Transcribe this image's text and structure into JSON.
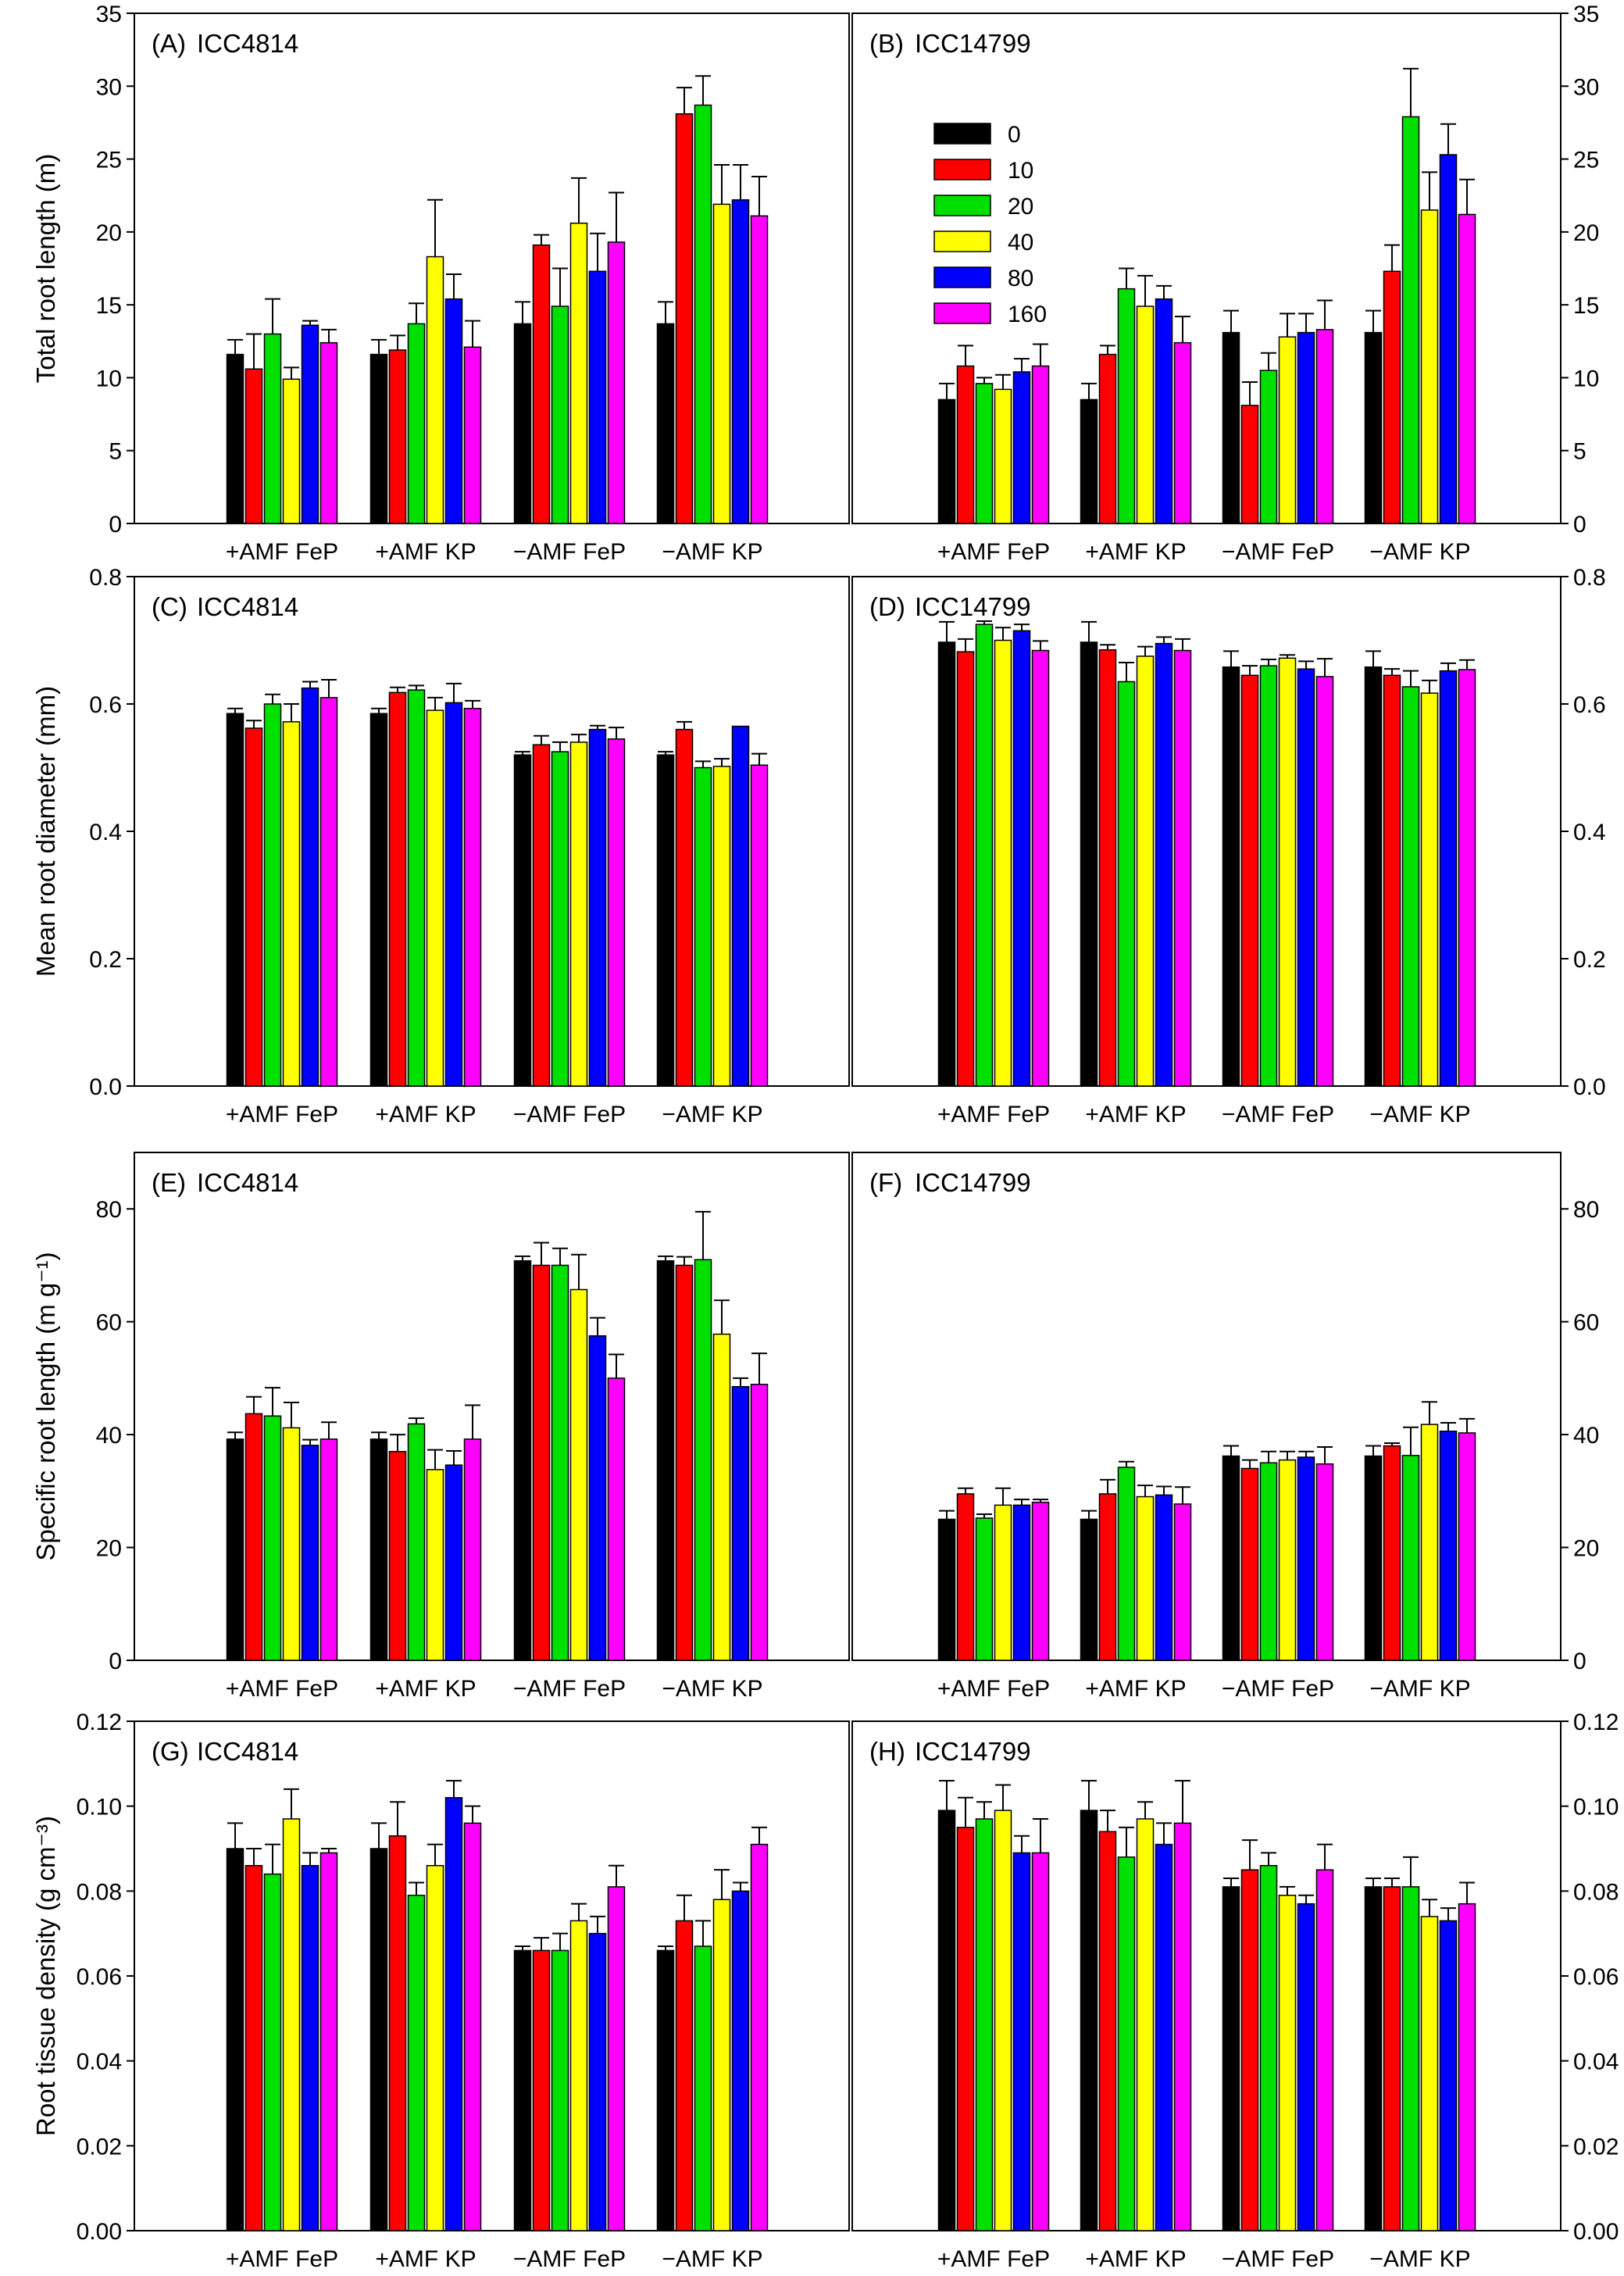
{
  "figure": {
    "y_axis_titles": [
      "Total root length (m)",
      "Mean root diameter (mm)",
      "Specific root length (m g⁻¹)",
      "Root tissue density (g cm⁻³)"
    ]
  },
  "legend": {
    "entries": [
      {
        "label": "0",
        "color": "#000000"
      },
      {
        "label": "10",
        "color": "#ff0000"
      },
      {
        "label": "20",
        "color": "#00e000"
      },
      {
        "label": "40",
        "color": "#ffff00"
      },
      {
        "label": "80",
        "color": "#0000ff"
      },
      {
        "label": "160",
        "color": "#ff00ff"
      }
    ]
  },
  "chart_data": [
    {
      "type": "bar",
      "panel_label": "(A)",
      "genotype": "ICC4814",
      "categories": [
        "+AMF FeP",
        "+AMF KP",
        "−AMF FeP",
        "−AMF KP"
      ],
      "ylabel": "Total root length (m)",
      "ylim": [
        0,
        35
      ],
      "yticks": [
        "0",
        "5",
        "10",
        "15",
        "20",
        "25",
        "30",
        "35"
      ],
      "series": [
        {
          "name": "0",
          "values": [
            11.6,
            11.6,
            13.7,
            13.7
          ],
          "errors": [
            1.0,
            1.0,
            1.5,
            1.5
          ]
        },
        {
          "name": "10",
          "values": [
            10.6,
            11.9,
            19.1,
            28.1
          ],
          "errors": [
            2.4,
            1.0,
            0.7,
            1.8
          ]
        },
        {
          "name": "20",
          "values": [
            13.0,
            13.7,
            14.9,
            28.7
          ],
          "errors": [
            2.4,
            1.4,
            2.6,
            2.0
          ]
        },
        {
          "name": "40",
          "values": [
            9.9,
            18.3,
            20.6,
            21.9
          ],
          "errors": [
            0.8,
            3.9,
            3.1,
            2.7
          ]
        },
        {
          "name": "80",
          "values": [
            13.6,
            15.4,
            17.3,
            22.2
          ],
          "errors": [
            0.3,
            1.7,
            2.6,
            2.4
          ]
        },
        {
          "name": "160",
          "values": [
            12.4,
            12.1,
            19.3,
            21.1
          ],
          "errors": [
            0.9,
            1.8,
            3.4,
            2.7
          ]
        }
      ]
    },
    {
      "type": "bar",
      "panel_label": "(B)",
      "genotype": "ICC14799",
      "categories": [
        "+AMF FeP",
        "+AMF KP",
        "−AMF FeP",
        "−AMF KP"
      ],
      "ylabel": "Total root length (m)",
      "ylim": [
        0,
        35
      ],
      "yticks": [
        "0",
        "5",
        "10",
        "15",
        "20",
        "25",
        "30",
        "35"
      ],
      "series": [
        {
          "name": "0",
          "values": [
            8.5,
            8.5,
            13.1,
            13.1
          ],
          "errors": [
            1.1,
            1.1,
            1.5,
            1.5
          ]
        },
        {
          "name": "10",
          "values": [
            10.8,
            11.6,
            8.1,
            17.3
          ],
          "errors": [
            1.4,
            0.6,
            1.6,
            1.8
          ]
        },
        {
          "name": "20",
          "values": [
            9.6,
            16.1,
            10.5,
            27.9
          ],
          "errors": [
            0.4,
            1.4,
            1.2,
            3.3
          ]
        },
        {
          "name": "40",
          "values": [
            9.2,
            14.9,
            12.8,
            21.5
          ],
          "errors": [
            1.0,
            2.1,
            1.6,
            2.6
          ]
        },
        {
          "name": "80",
          "values": [
            10.4,
            15.4,
            13.1,
            25.3
          ],
          "errors": [
            0.9,
            0.9,
            1.3,
            2.1
          ]
        },
        {
          "name": "160",
          "values": [
            10.8,
            12.4,
            13.3,
            21.2
          ],
          "errors": [
            1.5,
            1.8,
            2.0,
            2.4
          ]
        }
      ]
    },
    {
      "type": "bar",
      "panel_label": "(C)",
      "genotype": "ICC4814",
      "categories": [
        "+AMF FeP",
        "+AMF KP",
        "−AMF FeP",
        "−AMF KP"
      ],
      "ylabel": "Mean root diameter (mm)",
      "ylim": [
        0,
        0.8
      ],
      "yticks": [
        "0.0",
        "0.2",
        "0.4",
        "0.6",
        "0.8"
      ],
      "series": [
        {
          "name": "0",
          "values": [
            0.585,
            0.585,
            0.52,
            0.52
          ],
          "errors": [
            0.008,
            0.008,
            0.005,
            0.005
          ]
        },
        {
          "name": "10",
          "values": [
            0.562,
            0.618,
            0.536,
            0.56
          ],
          "errors": [
            0.012,
            0.008,
            0.014,
            0.012
          ]
        },
        {
          "name": "20",
          "values": [
            0.6,
            0.622,
            0.525,
            0.5
          ],
          "errors": [
            0.015,
            0.007,
            0.015,
            0.01
          ]
        },
        {
          "name": "40",
          "values": [
            0.572,
            0.59,
            0.54,
            0.502
          ],
          "errors": [
            0.028,
            0.02,
            0.012,
            0.012
          ]
        },
        {
          "name": "80",
          "values": [
            0.625,
            0.602,
            0.56,
            0.565
          ],
          "errors": [
            0.01,
            0.03,
            0.006,
            0.0
          ]
        },
        {
          "name": "160",
          "values": [
            0.61,
            0.593,
            0.545,
            0.504
          ],
          "errors": [
            0.028,
            0.012,
            0.018,
            0.018
          ]
        }
      ]
    },
    {
      "type": "bar",
      "panel_label": "(D)",
      "genotype": "ICC14799",
      "categories": [
        "+AMF FeP",
        "+AMF KP",
        "−AMF FeP",
        "−AMF KP"
      ],
      "ylabel": "Mean root diameter (mm)",
      "ylim": [
        0,
        0.8
      ],
      "yticks": [
        "0.0",
        "0.2",
        "0.4",
        "0.6",
        "0.8"
      ],
      "series": [
        {
          "name": "0",
          "values": [
            0.697,
            0.697,
            0.658,
            0.658
          ],
          "errors": [
            0.032,
            0.032,
            0.025,
            0.025
          ]
        },
        {
          "name": "10",
          "values": [
            0.682,
            0.685,
            0.645,
            0.645
          ],
          "errors": [
            0.02,
            0.008,
            0.015,
            0.01
          ]
        },
        {
          "name": "20",
          "values": [
            0.725,
            0.635,
            0.66,
            0.627
          ],
          "errors": [
            0.005,
            0.03,
            0.01,
            0.025
          ]
        },
        {
          "name": "40",
          "values": [
            0.7,
            0.675,
            0.672,
            0.617
          ],
          "errors": [
            0.02,
            0.015,
            0.005,
            0.02
          ]
        },
        {
          "name": "80",
          "values": [
            0.715,
            0.695,
            0.655,
            0.652
          ],
          "errors": [
            0.01,
            0.01,
            0.012,
            0.012
          ]
        },
        {
          "name": "160",
          "values": [
            0.684,
            0.684,
            0.643,
            0.654
          ],
          "errors": [
            0.015,
            0.018,
            0.028,
            0.015
          ]
        }
      ]
    },
    {
      "type": "bar",
      "panel_label": "(E)",
      "genotype": "ICC4814",
      "categories": [
        "+AMF FeP",
        "+AMF KP",
        "−AMF FeP",
        "−AMF KP"
      ],
      "ylabel": "Specific root length (m g⁻¹)",
      "ylim": [
        0,
        90
      ],
      "yticks": [
        "0",
        "20",
        "40",
        "60",
        "80"
      ],
      "series": [
        {
          "name": "0",
          "values": [
            39.2,
            39.2,
            70.8,
            70.8
          ],
          "errors": [
            1.2,
            1.2,
            0.8,
            0.8
          ]
        },
        {
          "name": "10",
          "values": [
            43.7,
            37.0,
            70.0,
            70.0
          ],
          "errors": [
            3.0,
            3.0,
            4.0,
            1.5
          ]
        },
        {
          "name": "20",
          "values": [
            43.3,
            41.9,
            70.0,
            71.0
          ],
          "errors": [
            5.0,
            1.0,
            3.0,
            8.5
          ]
        },
        {
          "name": "40",
          "values": [
            41.2,
            33.8,
            65.7,
            57.8
          ],
          "errors": [
            4.5,
            3.5,
            6.2,
            6.0
          ]
        },
        {
          "name": "80",
          "values": [
            38.1,
            34.6,
            57.5,
            48.5
          ],
          "errors": [
            1.0,
            2.5,
            3.2,
            1.5
          ]
        },
        {
          "name": "160",
          "values": [
            39.2,
            39.2,
            50.0,
            48.9
          ],
          "errors": [
            3.0,
            6.0,
            4.2,
            5.5
          ]
        }
      ]
    },
    {
      "type": "bar",
      "panel_label": "(F)",
      "genotype": "ICC14799",
      "categories": [
        "+AMF FeP",
        "+AMF KP",
        "−AMF FeP",
        "−AMF KP"
      ],
      "ylabel": "Specific root length (m g⁻¹)",
      "ylim": [
        0,
        90
      ],
      "yticks": [
        "0",
        "20",
        "40",
        "60",
        "80"
      ],
      "series": [
        {
          "name": "0",
          "values": [
            25.0,
            25.0,
            36.2,
            36.2
          ],
          "errors": [
            1.5,
            1.5,
            1.8,
            1.8
          ]
        },
        {
          "name": "10",
          "values": [
            29.5,
            29.5,
            34.0,
            38.0
          ],
          "errors": [
            1.0,
            2.5,
            1.5,
            0.5
          ]
        },
        {
          "name": "20",
          "values": [
            25.2,
            34.2,
            35.0,
            36.3
          ],
          "errors": [
            0.7,
            1.0,
            2.0,
            5.0
          ]
        },
        {
          "name": "40",
          "values": [
            27.5,
            29.0,
            35.5,
            41.8
          ],
          "errors": [
            3.0,
            2.0,
            1.5,
            4.0
          ]
        },
        {
          "name": "80",
          "values": [
            27.5,
            29.3,
            36.0,
            40.6
          ],
          "errors": [
            1.0,
            1.5,
            1.0,
            1.5
          ]
        },
        {
          "name": "160",
          "values": [
            28.0,
            27.7,
            34.8,
            40.3
          ],
          "errors": [
            0.5,
            3.0,
            3.0,
            2.5
          ]
        }
      ]
    },
    {
      "type": "bar",
      "panel_label": "(G)",
      "genotype": "ICC4814",
      "categories": [
        "+AMF FeP",
        "+AMF KP",
        "−AMF FeP",
        "−AMF KP"
      ],
      "ylabel": "Root tissue density (g cm⁻³)",
      "ylim": [
        0,
        0.12
      ],
      "yticks": [
        "0.00",
        "0.02",
        "0.04",
        "0.06",
        "0.08",
        "0.10",
        "0.12"
      ],
      "series": [
        {
          "name": "0",
          "values": [
            0.09,
            0.09,
            0.066,
            0.066
          ],
          "errors": [
            0.006,
            0.006,
            0.001,
            0.001
          ]
        },
        {
          "name": "10",
          "values": [
            0.086,
            0.093,
            0.066,
            0.073
          ],
          "errors": [
            0.004,
            0.008,
            0.003,
            0.006
          ]
        },
        {
          "name": "20",
          "values": [
            0.084,
            0.079,
            0.066,
            0.067
          ],
          "errors": [
            0.007,
            0.003,
            0.004,
            0.006
          ]
        },
        {
          "name": "40",
          "values": [
            0.097,
            0.086,
            0.073,
            0.078
          ],
          "errors": [
            0.007,
            0.005,
            0.004,
            0.007
          ]
        },
        {
          "name": "80",
          "values": [
            0.086,
            0.102,
            0.07,
            0.08
          ],
          "errors": [
            0.003,
            0.004,
            0.004,
            0.002
          ]
        },
        {
          "name": "160",
          "values": [
            0.089,
            0.096,
            0.081,
            0.091
          ],
          "errors": [
            0.001,
            0.004,
            0.005,
            0.004
          ]
        }
      ]
    },
    {
      "type": "bar",
      "panel_label": "(H)",
      "genotype": "ICC14799",
      "categories": [
        "+AMF FeP",
        "+AMF KP",
        "−AMF FeP",
        "−AMF KP"
      ],
      "ylabel": "Root tissue density (g cm⁻³)",
      "ylim": [
        0,
        0.12
      ],
      "yticks": [
        "0.00",
        "0.02",
        "0.04",
        "0.06",
        "0.08",
        "0.10",
        "0.12"
      ],
      "series": [
        {
          "name": "0",
          "values": [
            0.099,
            0.099,
            0.081,
            0.081
          ],
          "errors": [
            0.007,
            0.007,
            0.002,
            0.002
          ]
        },
        {
          "name": "10",
          "values": [
            0.095,
            0.094,
            0.085,
            0.081
          ],
          "errors": [
            0.007,
            0.005,
            0.007,
            0.002
          ]
        },
        {
          "name": "20",
          "values": [
            0.097,
            0.088,
            0.086,
            0.081
          ],
          "errors": [
            0.004,
            0.007,
            0.003,
            0.007
          ]
        },
        {
          "name": "40",
          "values": [
            0.099,
            0.097,
            0.079,
            0.074
          ],
          "errors": [
            0.006,
            0.004,
            0.002,
            0.004
          ]
        },
        {
          "name": "80",
          "values": [
            0.089,
            0.091,
            0.077,
            0.073
          ],
          "errors": [
            0.004,
            0.005,
            0.002,
            0.003
          ]
        },
        {
          "name": "160",
          "values": [
            0.089,
            0.096,
            0.085,
            0.077
          ],
          "errors": [
            0.008,
            0.01,
            0.006,
            0.005
          ]
        }
      ]
    }
  ]
}
